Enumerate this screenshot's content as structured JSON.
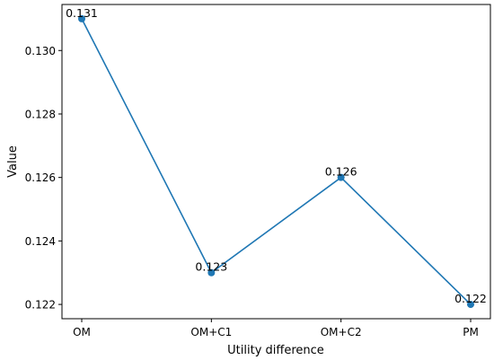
{
  "chart_data": {
    "type": "line",
    "categories": [
      "OM",
      "OM+C1",
      "OM+C2",
      "PM"
    ],
    "values": [
      0.131,
      0.123,
      0.126,
      0.122
    ],
    "data_labels": [
      "0.131",
      "0.123",
      "0.126",
      "0.122"
    ],
    "xlabel": "Utility difference",
    "ylabel": "Value",
    "ylim": [
      0.12155,
      0.13145
    ],
    "yticks": [
      0.122,
      0.124,
      0.126,
      0.128,
      0.13
    ],
    "ytick_labels": [
      "0.122",
      "0.124",
      "0.126",
      "0.128",
      "0.130"
    ],
    "grid": false,
    "legend": "none",
    "marker": "circle",
    "color": "#1f77b4"
  }
}
